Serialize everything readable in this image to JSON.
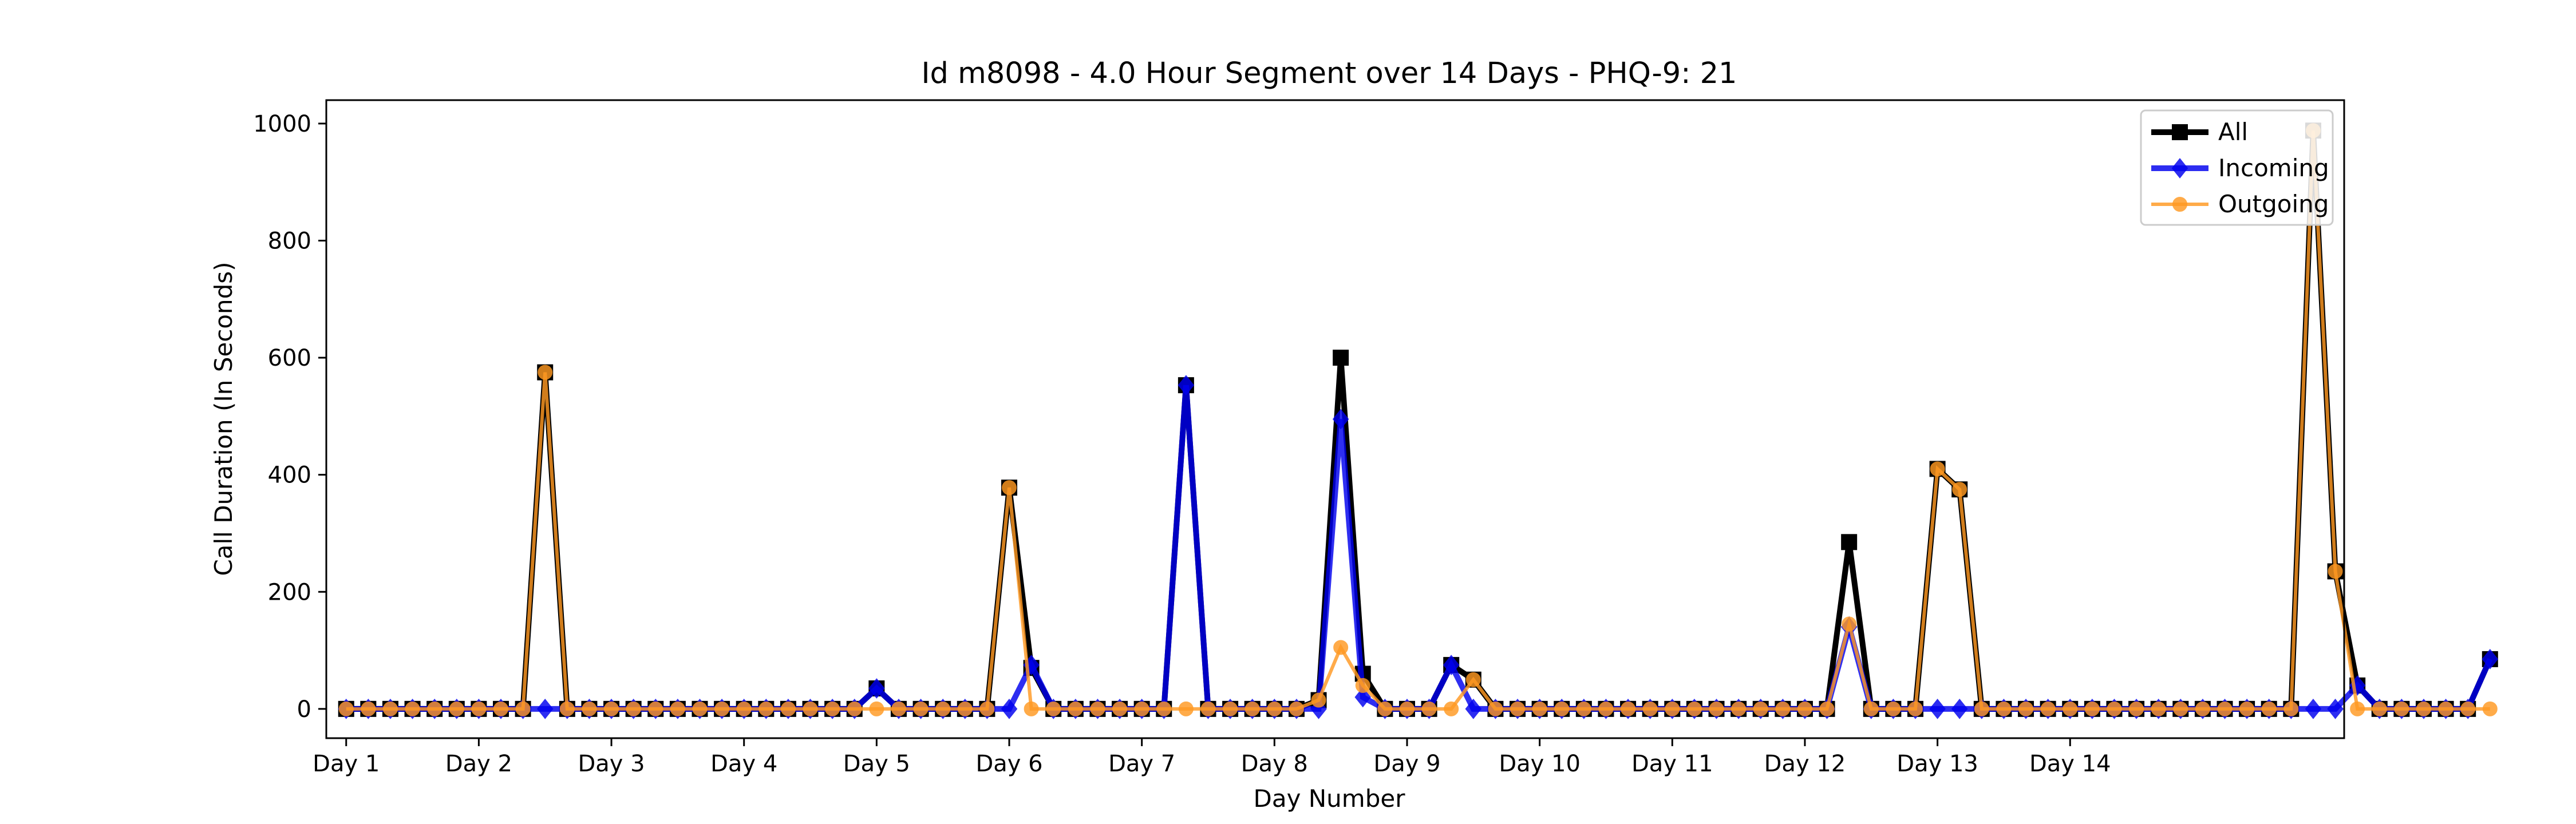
{
  "chart_data": {
    "type": "line",
    "title": "Id m8098 - 4.0 Hour Segment over 14 Days - PHQ-9: 21",
    "xlabel": "Day Number",
    "ylabel": "Call Duration (In Seconds)",
    "x_tick_labels": [
      "Day 1",
      "Day 2",
      "Day 3",
      "Day 4",
      "Day 5",
      "Day 6",
      "Day 7",
      "Day 8",
      "Day 9",
      "Day 10",
      "Day 11",
      "Day 12",
      "Day 13",
      "Day 14"
    ],
    "y_ticks": [
      0,
      200,
      400,
      600,
      800,
      1000
    ],
    "ylim": [
      -50,
      1040
    ],
    "xlim": [
      -0.9,
      90.4
    ],
    "grid": false,
    "legend_position": "top-right",
    "series": [
      {
        "name": "All",
        "color": "#000000",
        "marker": "square",
        "values": [
          0,
          0,
          0,
          0,
          0,
          0,
          0,
          0,
          0,
          575,
          0,
          0,
          0,
          0,
          0,
          0,
          0,
          0,
          0,
          0,
          0,
          0,
          0,
          0,
          35,
          0,
          0,
          0,
          0,
          0,
          378,
          70,
          0,
          0,
          0,
          0,
          0,
          0,
          553,
          0,
          0,
          0,
          0,
          0,
          15,
          600,
          60,
          0,
          0,
          0,
          75,
          50,
          0,
          0,
          0,
          0,
          0,
          0,
          0,
          0,
          0,
          0,
          0,
          0,
          0,
          0,
          0,
          0,
          285,
          0,
          0,
          0,
          410,
          375,
          0,
          0,
          0,
          0,
          0,
          0,
          0,
          0,
          0,
          0,
          0,
          0,
          0,
          0,
          0,
          988,
          235,
          40,
          0,
          0,
          0,
          0,
          0,
          85
        ]
      },
      {
        "name": "Incoming",
        "color": "#0000ee",
        "marker": "diamond",
        "values": [
          0,
          0,
          0,
          0,
          0,
          0,
          0,
          0,
          0,
          0,
          0,
          0,
          0,
          0,
          0,
          0,
          0,
          0,
          0,
          0,
          0,
          0,
          0,
          0,
          35,
          0,
          0,
          0,
          0,
          0,
          0,
          75,
          0,
          0,
          0,
          0,
          0,
          0,
          553,
          0,
          0,
          0,
          0,
          0,
          0,
          495,
          20,
          0,
          0,
          0,
          75,
          0,
          0,
          0,
          0,
          0,
          0,
          0,
          0,
          0,
          0,
          0,
          0,
          0,
          0,
          0,
          0,
          0,
          140,
          0,
          0,
          0,
          0,
          0,
          0,
          0,
          0,
          0,
          0,
          0,
          0,
          0,
          0,
          0,
          0,
          0,
          0,
          0,
          0,
          0,
          0,
          40,
          0,
          0,
          0,
          0,
          0,
          85
        ]
      },
      {
        "name": "Outgoing",
        "color": "#ff9922",
        "marker": "circle",
        "values": [
          0,
          0,
          0,
          0,
          0,
          0,
          0,
          0,
          0,
          575,
          0,
          0,
          0,
          0,
          0,
          0,
          0,
          0,
          0,
          0,
          0,
          0,
          0,
          0,
          0,
          0,
          0,
          0,
          0,
          0,
          378,
          0,
          0,
          0,
          0,
          0,
          0,
          0,
          0,
          0,
          0,
          0,
          0,
          0,
          15,
          105,
          40,
          0,
          0,
          0,
          0,
          50,
          0,
          0,
          0,
          0,
          0,
          0,
          0,
          0,
          0,
          0,
          0,
          0,
          0,
          0,
          0,
          0,
          145,
          0,
          0,
          0,
          410,
          375,
          0,
          0,
          0,
          0,
          0,
          0,
          0,
          0,
          0,
          0,
          0,
          0,
          0,
          0,
          0,
          988,
          235,
          0,
          0,
          0,
          0,
          0,
          0,
          0
        ]
      }
    ]
  }
}
